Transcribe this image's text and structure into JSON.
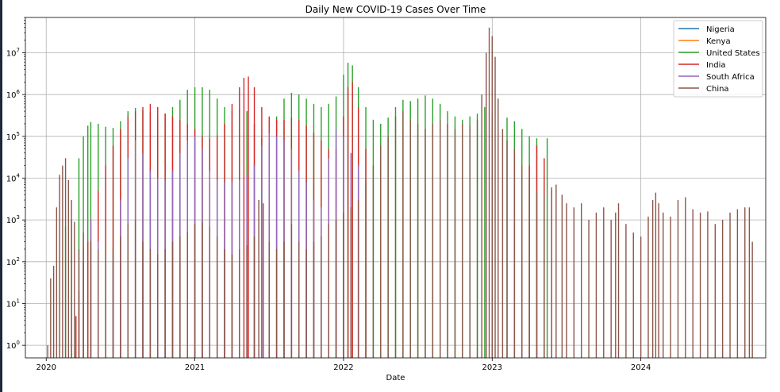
{
  "chart_data": {
    "type": "bar",
    "title": "Daily New COVID-19 Cases Over Time",
    "xlabel": "Date",
    "ylabel": "",
    "yscale": "log",
    "ylim": [
      0.5,
      70000000
    ],
    "xlim": [
      2019.86,
      2024.84
    ],
    "grid": true,
    "legend_position": "top-right",
    "x_ticks": [
      {
        "value": 2020,
        "label": "2020"
      },
      {
        "value": 2021,
        "label": "2021"
      },
      {
        "value": 2022,
        "label": "2022"
      },
      {
        "value": 2023,
        "label": "2023"
      },
      {
        "value": 2024,
        "label": "2024"
      }
    ],
    "y_ticks": [
      {
        "value": 1,
        "base": "10",
        "exp": "0"
      },
      {
        "value": 10,
        "base": "10",
        "exp": "1"
      },
      {
        "value": 100,
        "base": "10",
        "exp": "2"
      },
      {
        "value": 1000,
        "base": "10",
        "exp": "3"
      },
      {
        "value": 10000,
        "base": "10",
        "exp": "4"
      },
      {
        "value": 100000,
        "base": "10",
        "exp": "5"
      },
      {
        "value": 1000000,
        "base": "10",
        "exp": "6"
      },
      {
        "value": 10000000,
        "base": "10",
        "exp": "7"
      }
    ],
    "series": [
      {
        "name": "Nigeria",
        "color": "#1f77b4",
        "points": [
          [
            2020.15,
            0.5
          ]
        ]
      },
      {
        "name": "Kenya",
        "color": "#ff7f0e",
        "points": [
          [
            2020.2,
            0.5
          ]
        ]
      },
      {
        "name": "United States",
        "color": "#2ca02c",
        "points": [
          [
            2020.13,
            700
          ],
          [
            2020.17,
            1000
          ],
          [
            2020.22,
            30000
          ],
          [
            2020.25,
            100000
          ],
          [
            2020.28,
            180000
          ],
          [
            2020.3,
            220000
          ],
          [
            2020.35,
            200000
          ],
          [
            2020.4,
            170000
          ],
          [
            2020.45,
            160000
          ],
          [
            2020.5,
            230000
          ],
          [
            2020.55,
            400000
          ],
          [
            2020.6,
            480000
          ],
          [
            2020.65,
            420000
          ],
          [
            2020.7,
            380000
          ],
          [
            2020.75,
            290000
          ],
          [
            2020.8,
            350000
          ],
          [
            2020.85,
            500000
          ],
          [
            2020.9,
            750000
          ],
          [
            2020.95,
            1300000
          ],
          [
            2021.0,
            1500000
          ],
          [
            2021.05,
            1500000
          ],
          [
            2021.1,
            1300000
          ],
          [
            2021.15,
            800000
          ],
          [
            2021.2,
            500000
          ],
          [
            2021.25,
            400000
          ],
          [
            2021.3,
            450000
          ],
          [
            2021.35,
            400000
          ],
          [
            2021.4,
            200000
          ],
          [
            2021.45,
            90000
          ],
          [
            2021.5,
            100000
          ],
          [
            2021.55,
            300000
          ],
          [
            2021.6,
            800000
          ],
          [
            2021.65,
            1100000
          ],
          [
            2021.7,
            1000000
          ],
          [
            2021.75,
            800000
          ],
          [
            2021.8,
            600000
          ],
          [
            2021.85,
            500000
          ],
          [
            2021.9,
            600000
          ],
          [
            2021.95,
            900000
          ],
          [
            2022.0,
            3000000
          ],
          [
            2022.03,
            5800000
          ],
          [
            2022.06,
            5000000
          ],
          [
            2022.1,
            1500000
          ],
          [
            2022.15,
            500000
          ],
          [
            2022.2,
            250000
          ],
          [
            2022.25,
            200000
          ],
          [
            2022.3,
            280000
          ],
          [
            2022.35,
            500000
          ],
          [
            2022.4,
            750000
          ],
          [
            2022.45,
            700000
          ],
          [
            2022.5,
            800000
          ],
          [
            2022.55,
            950000
          ],
          [
            2022.6,
            800000
          ],
          [
            2022.65,
            600000
          ],
          [
            2022.7,
            400000
          ],
          [
            2022.75,
            300000
          ],
          [
            2022.8,
            250000
          ],
          [
            2022.85,
            300000
          ],
          [
            2022.9,
            350000
          ],
          [
            2022.95,
            500000
          ],
          [
            2023.0,
            350000
          ],
          [
            2023.1,
            280000
          ],
          [
            2023.15,
            230000
          ],
          [
            2023.2,
            150000
          ],
          [
            2023.25,
            100000
          ],
          [
            2023.3,
            90000
          ],
          [
            2023.37,
            90000
          ]
        ]
      },
      {
        "name": "India",
        "color": "#d62728",
        "points": [
          [
            2020.2,
            5
          ],
          [
            2020.22,
            20
          ],
          [
            2020.25,
            100
          ],
          [
            2020.28,
            300
          ],
          [
            2020.3,
            1000
          ],
          [
            2020.35,
            5000
          ],
          [
            2020.4,
            20000
          ],
          [
            2020.45,
            60000
          ],
          [
            2020.5,
            150000
          ],
          [
            2020.55,
            300000
          ],
          [
            2020.6,
            400000
          ],
          [
            2020.65,
            500000
          ],
          [
            2020.7,
            600000
          ],
          [
            2020.75,
            500000
          ],
          [
            2020.8,
            350000
          ],
          [
            2020.85,
            300000
          ],
          [
            2020.9,
            250000
          ],
          [
            2020.95,
            200000
          ],
          [
            2021.0,
            150000
          ],
          [
            2021.05,
            100000
          ],
          [
            2021.1,
            90000
          ],
          [
            2021.15,
            100000
          ],
          [
            2021.2,
            200000
          ],
          [
            2021.25,
            600000
          ],
          [
            2021.3,
            1500000
          ],
          [
            2021.33,
            2500000
          ],
          [
            2021.36,
            2700000
          ],
          [
            2021.4,
            1500000
          ],
          [
            2021.45,
            500000
          ],
          [
            2021.5,
            300000
          ],
          [
            2021.55,
            250000
          ],
          [
            2021.6,
            250000
          ],
          [
            2021.65,
            280000
          ],
          [
            2021.7,
            250000
          ],
          [
            2021.75,
            180000
          ],
          [
            2021.8,
            120000
          ],
          [
            2021.85,
            80000
          ],
          [
            2021.9,
            50000
          ],
          [
            2021.95,
            50000
          ],
          [
            2022.0,
            300000
          ],
          [
            2022.03,
            1500000
          ],
          [
            2022.06,
            2000000
          ],
          [
            2022.1,
            500000
          ],
          [
            2022.15,
            50000
          ],
          [
            2023.2,
            2000
          ],
          [
            2023.25,
            20000
          ],
          [
            2023.3,
            60000
          ],
          [
            2023.35,
            30000
          ],
          [
            2023.4,
            5000
          ]
        ]
      },
      {
        "name": "South Africa",
        "color": "#9467bd",
        "points": [
          [
            2020.25,
            200
          ],
          [
            2020.3,
            1000
          ],
          [
            2020.35,
            300
          ],
          [
            2020.4,
            50
          ],
          [
            2020.45,
            100
          ],
          [
            2020.5,
            3000
          ],
          [
            2020.55,
            30000
          ],
          [
            2020.6,
            80000
          ],
          [
            2020.65,
            40000
          ],
          [
            2020.7,
            15000
          ],
          [
            2020.75,
            10000
          ],
          [
            2020.8,
            9000
          ],
          [
            2020.85,
            15000
          ],
          [
            2020.9,
            40000
          ],
          [
            2020.95,
            80000
          ],
          [
            2021.0,
            100000
          ],
          [
            2021.05,
            50000
          ],
          [
            2021.1,
            15000
          ],
          [
            2021.15,
            9000
          ],
          [
            2021.2,
            8000
          ],
          [
            2021.25,
            8000
          ],
          [
            2021.3,
            9000
          ],
          [
            2021.35,
            12000
          ],
          [
            2021.4,
            20000
          ],
          [
            2021.45,
            60000
          ],
          [
            2021.5,
            120000
          ],
          [
            2021.55,
            100000
          ],
          [
            2021.6,
            80000
          ],
          [
            2021.65,
            50000
          ],
          [
            2021.7,
            15000
          ],
          [
            2021.75,
            8000
          ],
          [
            2021.8,
            3000
          ],
          [
            2021.85,
            2000
          ],
          [
            2021.9,
            30000
          ],
          [
            2021.95,
            150000
          ],
          [
            2022.0,
            100000
          ],
          [
            2022.05,
            40000
          ],
          [
            2022.1,
            20000
          ]
        ]
      },
      {
        "name": "China",
        "color": "#8c564b",
        "points": [
          [
            2020.01,
            1
          ],
          [
            2020.03,
            40
          ],
          [
            2020.05,
            80
          ],
          [
            2020.07,
            2000
          ],
          [
            2020.09,
            12000
          ],
          [
            2020.11,
            20000
          ],
          [
            2020.13,
            30000
          ],
          [
            2020.15,
            9000
          ],
          [
            2020.17,
            3000
          ],
          [
            2020.19,
            900
          ],
          [
            2020.22,
            200
          ],
          [
            2020.25,
            500
          ],
          [
            2020.3,
            300
          ],
          [
            2020.35,
            200
          ],
          [
            2020.4,
            150
          ],
          [
            2020.45,
            200
          ],
          [
            2020.5,
            400
          ],
          [
            2020.55,
            800
          ],
          [
            2020.6,
            1000
          ],
          [
            2020.65,
            300
          ],
          [
            2020.7,
            200
          ],
          [
            2020.75,
            150
          ],
          [
            2020.8,
            200
          ],
          [
            2020.85,
            300
          ],
          [
            2020.9,
            400
          ],
          [
            2020.95,
            500
          ],
          [
            2021.0,
            800
          ],
          [
            2021.05,
            900
          ],
          [
            2021.1,
            700
          ],
          [
            2021.15,
            400
          ],
          [
            2021.2,
            200
          ],
          [
            2021.25,
            150
          ],
          [
            2021.3,
            200
          ],
          [
            2021.35,
            250
          ],
          [
            2021.4,
            400
          ],
          [
            2021.43,
            3000
          ],
          [
            2021.46,
            2500
          ],
          [
            2021.5,
            300
          ],
          [
            2021.55,
            200
          ],
          [
            2021.6,
            300
          ],
          [
            2021.65,
            800
          ],
          [
            2021.7,
            300
          ],
          [
            2021.75,
            200
          ],
          [
            2021.8,
            300
          ],
          [
            2021.85,
            400
          ],
          [
            2021.9,
            800
          ],
          [
            2021.95,
            1000
          ],
          [
            2022.0,
            1500
          ],
          [
            2022.05,
            2000
          ],
          [
            2022.1,
            3000
          ],
          [
            2022.15,
            8000
          ],
          [
            2022.2,
            20000
          ],
          [
            2022.25,
            60000
          ],
          [
            2022.3,
            100000
          ],
          [
            2022.35,
            300000
          ],
          [
            2022.4,
            400000
          ],
          [
            2022.45,
            250000
          ],
          [
            2022.5,
            200000
          ],
          [
            2022.55,
            150000
          ],
          [
            2022.6,
            200000
          ],
          [
            2022.65,
            250000
          ],
          [
            2022.7,
            200000
          ],
          [
            2022.75,
            150000
          ],
          [
            2022.8,
            200000
          ],
          [
            2022.85,
            180000
          ],
          [
            2022.9,
            250000
          ],
          [
            2022.93,
            1000000
          ],
          [
            2022.96,
            10000000
          ],
          [
            2022.98,
            40000000
          ],
          [
            2023.0,
            25000000
          ],
          [
            2023.02,
            8000000
          ],
          [
            2023.04,
            800000
          ],
          [
            2023.07,
            150000
          ],
          [
            2023.1,
            80000
          ],
          [
            2023.15,
            50000
          ],
          [
            2023.2,
            20000
          ],
          [
            2023.25,
            10000
          ],
          [
            2023.3,
            5000
          ],
          [
            2023.35,
            4000
          ],
          [
            2023.4,
            6000
          ],
          [
            2023.43,
            7000
          ],
          [
            2023.47,
            4000
          ],
          [
            2023.5,
            2500
          ],
          [
            2023.55,
            2000
          ],
          [
            2023.6,
            2500
          ],
          [
            2023.65,
            1000
          ],
          [
            2023.7,
            1500
          ],
          [
            2023.75,
            2000
          ],
          [
            2023.8,
            1000
          ],
          [
            2023.83,
            1500
          ],
          [
            2023.85,
            2500
          ],
          [
            2023.9,
            800
          ],
          [
            2023.95,
            500
          ],
          [
            2024.0,
            400
          ],
          [
            2024.05,
            1200
          ],
          [
            2024.08,
            3000
          ],
          [
            2024.1,
            4500
          ],
          [
            2024.12,
            2500
          ],
          [
            2024.15,
            1500
          ],
          [
            2024.2,
            1200
          ],
          [
            2024.25,
            3000
          ],
          [
            2024.3,
            3500
          ],
          [
            2024.35,
            1800
          ],
          [
            2024.4,
            1500
          ],
          [
            2024.45,
            1600
          ],
          [
            2024.5,
            800
          ],
          [
            2024.55,
            1000
          ],
          [
            2024.6,
            1500
          ],
          [
            2024.65,
            1800
          ],
          [
            2024.7,
            2000
          ],
          [
            2024.73,
            2000
          ],
          [
            2024.75,
            300
          ]
        ]
      }
    ]
  }
}
